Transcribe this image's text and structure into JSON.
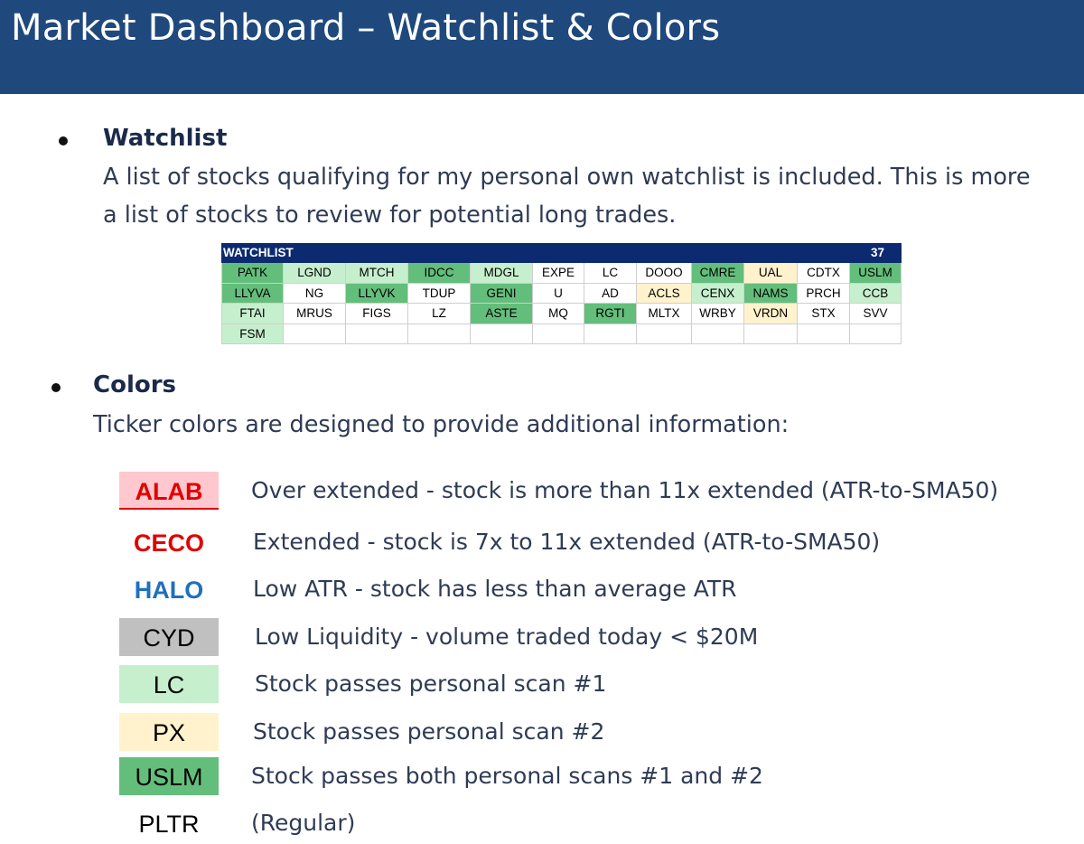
{
  "header": {
    "title": "Market Dashboard – Watchlist & Colors"
  },
  "watchlist_section": {
    "heading": "Watchlist",
    "line1": "A list of stocks qualifying for my personal own watchlist is included. This is more",
    "line2": "a list of stocks to review for potential long trades."
  },
  "watchlist_table": {
    "title": "WATCHLIST",
    "count": "37",
    "rows": [
      [
        {
          "ticker": "PATK",
          "color": "both"
        },
        {
          "ticker": "LGND",
          "color": "scan1"
        },
        {
          "ticker": "MTCH",
          "color": "scan1"
        },
        {
          "ticker": "IDCC",
          "color": "both"
        },
        {
          "ticker": "MDGL",
          "color": "scan1"
        },
        {
          "ticker": "EXPE",
          "color": "regular"
        },
        {
          "ticker": "LC",
          "color": "regular"
        },
        {
          "ticker": "DOOO",
          "color": "regular"
        },
        {
          "ticker": "CMRE",
          "color": "both"
        },
        {
          "ticker": "UAL",
          "color": "scan2"
        },
        {
          "ticker": "CDTX",
          "color": "regular"
        },
        {
          "ticker": "USLM",
          "color": "both"
        }
      ],
      [
        {
          "ticker": "LLYVA",
          "color": "both"
        },
        {
          "ticker": "NG",
          "color": "regular"
        },
        {
          "ticker": "LLYVK",
          "color": "both"
        },
        {
          "ticker": "TDUP",
          "color": "regular"
        },
        {
          "ticker": "GENI",
          "color": "both"
        },
        {
          "ticker": "U",
          "color": "regular"
        },
        {
          "ticker": "AD",
          "color": "regular"
        },
        {
          "ticker": "ACLS",
          "color": "scan2"
        },
        {
          "ticker": "CENX",
          "color": "scan1"
        },
        {
          "ticker": "NAMS",
          "color": "both"
        },
        {
          "ticker": "PRCH",
          "color": "regular"
        },
        {
          "ticker": "CCB",
          "color": "scan1"
        }
      ],
      [
        {
          "ticker": "FTAI",
          "color": "scan1"
        },
        {
          "ticker": "MRUS",
          "color": "regular"
        },
        {
          "ticker": "FIGS",
          "color": "regular"
        },
        {
          "ticker": "LZ",
          "color": "regular"
        },
        {
          "ticker": "ASTE",
          "color": "both"
        },
        {
          "ticker": "MQ",
          "color": "regular"
        },
        {
          "ticker": "RGTI",
          "color": "both"
        },
        {
          "ticker": "MLTX",
          "color": "regular"
        },
        {
          "ticker": "WRBY",
          "color": "regular"
        },
        {
          "ticker": "VRDN",
          "color": "scan2"
        },
        {
          "ticker": "STX",
          "color": "regular"
        },
        {
          "ticker": "SVV",
          "color": "regular"
        }
      ],
      [
        {
          "ticker": "FSM",
          "color": "scan1"
        },
        {
          "ticker": "",
          "color": "regular"
        },
        {
          "ticker": "",
          "color": "regular"
        },
        {
          "ticker": "",
          "color": "regular"
        },
        {
          "ticker": "",
          "color": "regular"
        },
        {
          "ticker": "",
          "color": "regular"
        },
        {
          "ticker": "",
          "color": "regular"
        },
        {
          "ticker": "",
          "color": "regular"
        },
        {
          "ticker": "",
          "color": "regular"
        },
        {
          "ticker": "",
          "color": "regular"
        },
        {
          "ticker": "",
          "color": "regular"
        },
        {
          "ticker": "",
          "color": "regular"
        }
      ]
    ]
  },
  "colors_section": {
    "heading": "Colors",
    "line1": "Ticker colors are designed to provide additional information:"
  },
  "legend": [
    {
      "ticker": "ALAB",
      "description": "Over extended - stock is more than 11x extended (ATR-to-SMA50)",
      "text_color": "#e00000",
      "bg": "#ffc7ce",
      "bold": true
    },
    {
      "ticker": "CECO",
      "description": "Extended - stock is 7x to 11x extended (ATR-to-SMA50)",
      "text_color": "#e00000",
      "bg": "#ffffff",
      "bold": true
    },
    {
      "ticker": "HALO",
      "description": "Low ATR - stock has less than average ATR",
      "text_color": "#1f6fbf",
      "bg": "#ffffff",
      "bold": true
    },
    {
      "ticker": "CYD",
      "description": "Low Liquidity - volume traded today < $20M",
      "text_color": "#000000",
      "bg": "#c0c0c0",
      "bold": false
    },
    {
      "ticker": "LC",
      "description": "Stock passes personal scan #1",
      "text_color": "#000000",
      "bg": "#c6efce",
      "bold": false
    },
    {
      "ticker": "PX",
      "description": "Stock passes personal scan #2",
      "text_color": "#000000",
      "bg": "#fff2cc",
      "bold": false
    },
    {
      "ticker": "USLM",
      "description": "Stock passes both personal scans #1 and #2",
      "text_color": "#000000",
      "bg": "#63be7b",
      "bold": false
    },
    {
      "ticker": "PLTR",
      "description": "(Regular)",
      "text_color": "#000000",
      "bg": "#ffffff",
      "bold": false
    }
  ],
  "palette": {
    "header_bg": "#1f497d",
    "table_header_bg": "#0b2a6f",
    "both_scans": "#63be7b",
    "scan1": "#c6efce",
    "scan2": "#fff2cc",
    "over_extended_bg": "#ffc7ce",
    "low_liquidity_bg": "#c0c0c0"
  }
}
